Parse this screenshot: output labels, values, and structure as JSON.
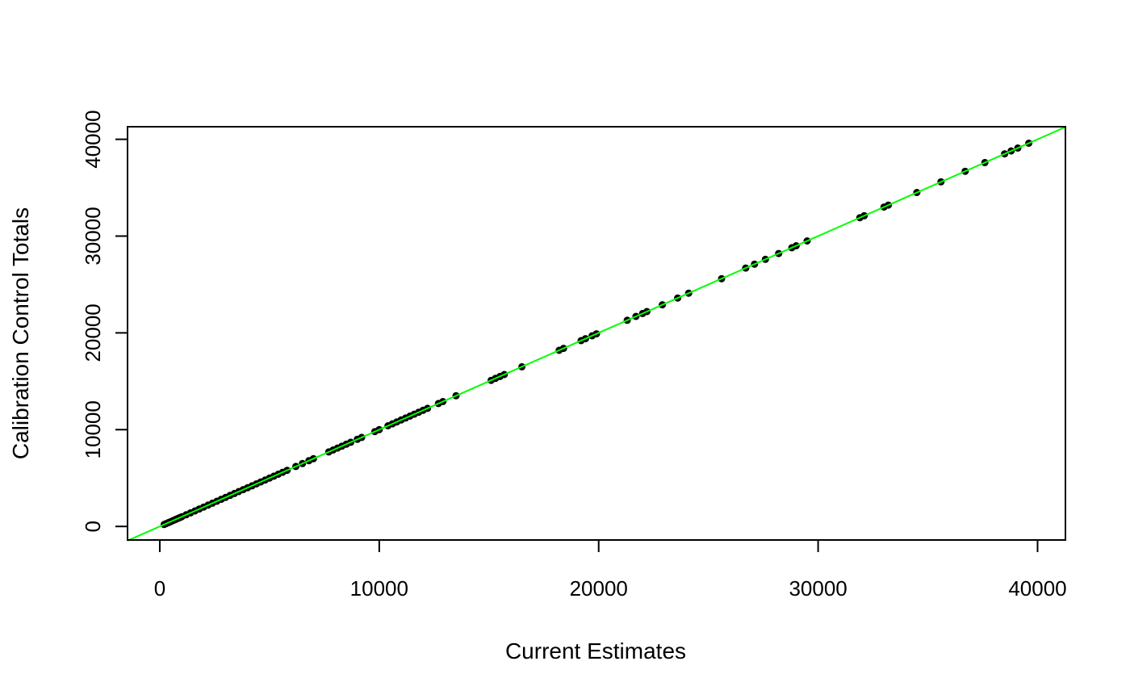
{
  "chart_data": {
    "type": "scatter",
    "title": "",
    "xlabel": "Current Estimates",
    "ylabel": "Calibration Control Totals",
    "xlim": [
      -1470,
      41270
    ],
    "ylim": [
      -1400,
      41300
    ],
    "x_ticks": [
      "0",
      "10000",
      "20000",
      "30000",
      "40000"
    ],
    "y_ticks": [
      "0",
      "10000",
      "20000",
      "30000",
      "40000"
    ],
    "grid": false,
    "legend": "none",
    "reference_line": {
      "intercept": 0,
      "slope": 1,
      "color": "#00ff00"
    },
    "point_color": "#000000",
    "points": [
      [
        200,
        200
      ],
      [
        300,
        300
      ],
      [
        400,
        400
      ],
      [
        500,
        500
      ],
      [
        600,
        600
      ],
      [
        700,
        700
      ],
      [
        800,
        800
      ],
      [
        900,
        900
      ],
      [
        1000,
        1000
      ],
      [
        1200,
        1200
      ],
      [
        1400,
        1400
      ],
      [
        1600,
        1600
      ],
      [
        1800,
        1800
      ],
      [
        2000,
        2000
      ],
      [
        2200,
        2200
      ],
      [
        2400,
        2400
      ],
      [
        2600,
        2600
      ],
      [
        2800,
        2800
      ],
      [
        3000,
        3000
      ],
      [
        3200,
        3200
      ],
      [
        3400,
        3400
      ],
      [
        3600,
        3600
      ],
      [
        3800,
        3800
      ],
      [
        4000,
        4000
      ],
      [
        4200,
        4200
      ],
      [
        4400,
        4400
      ],
      [
        4600,
        4600
      ],
      [
        4800,
        4800
      ],
      [
        5000,
        5000
      ],
      [
        5200,
        5200
      ],
      [
        5400,
        5400
      ],
      [
        5600,
        5600
      ],
      [
        5800,
        5800
      ],
      [
        6200,
        6200
      ],
      [
        6500,
        6500
      ],
      [
        6800,
        6800
      ],
      [
        7000,
        7000
      ],
      [
        7700,
        7700
      ],
      [
        7900,
        7900
      ],
      [
        8100,
        8100
      ],
      [
        8300,
        8300
      ],
      [
        8500,
        8500
      ],
      [
        8700,
        8700
      ],
      [
        9000,
        9000
      ],
      [
        9200,
        9200
      ],
      [
        9800,
        9800
      ],
      [
        10000,
        10000
      ],
      [
        10400,
        10400
      ],
      [
        10600,
        10600
      ],
      [
        10800,
        10800
      ],
      [
        11000,
        11000
      ],
      [
        11200,
        11200
      ],
      [
        11400,
        11400
      ],
      [
        11600,
        11600
      ],
      [
        11800,
        11800
      ],
      [
        12000,
        12000
      ],
      [
        12200,
        12200
      ],
      [
        12700,
        12700
      ],
      [
        12900,
        12900
      ],
      [
        13500,
        13500
      ],
      [
        15100,
        15100
      ],
      [
        15300,
        15300
      ],
      [
        15500,
        15500
      ],
      [
        15700,
        15700
      ],
      [
        16500,
        16500
      ],
      [
        18200,
        18200
      ],
      [
        18400,
        18400
      ],
      [
        19200,
        19200
      ],
      [
        19400,
        19400
      ],
      [
        19700,
        19700
      ],
      [
        19900,
        19900
      ],
      [
        21300,
        21300
      ],
      [
        21700,
        21700
      ],
      [
        22000,
        22000
      ],
      [
        22200,
        22200
      ],
      [
        22900,
        22900
      ],
      [
        23600,
        23600
      ],
      [
        24100,
        24100
      ],
      [
        25600,
        25600
      ],
      [
        26700,
        26700
      ],
      [
        27100,
        27100
      ],
      [
        27600,
        27600
      ],
      [
        28200,
        28200
      ],
      [
        28800,
        28800
      ],
      [
        29000,
        29000
      ],
      [
        29500,
        29500
      ],
      [
        31900,
        31900
      ],
      [
        32100,
        32100
      ],
      [
        33000,
        33000
      ],
      [
        33200,
        33200
      ],
      [
        34500,
        34500
      ],
      [
        35600,
        35600
      ],
      [
        36700,
        36700
      ],
      [
        37600,
        37600
      ],
      [
        38500,
        38500
      ],
      [
        38800,
        38800
      ],
      [
        39100,
        39100
      ],
      [
        39600,
        39600
      ]
    ]
  }
}
